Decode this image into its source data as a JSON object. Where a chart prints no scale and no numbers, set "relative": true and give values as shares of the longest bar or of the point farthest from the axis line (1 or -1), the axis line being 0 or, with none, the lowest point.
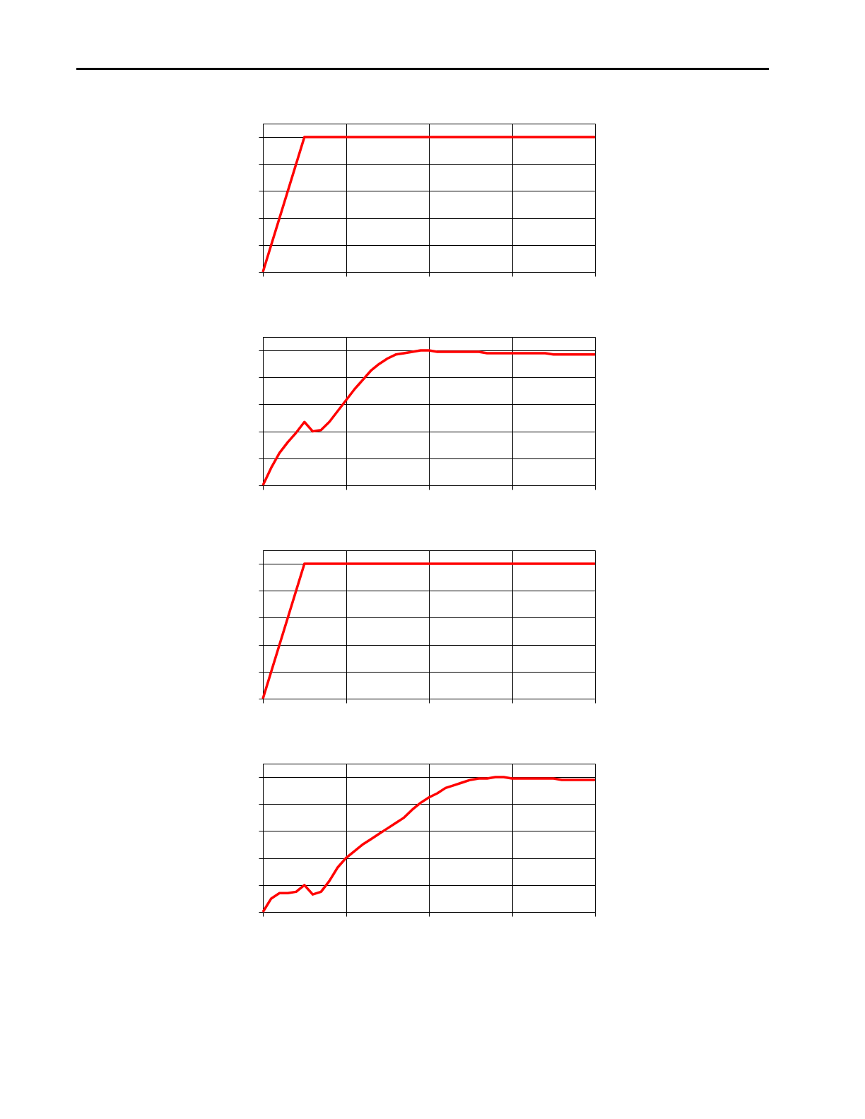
{
  "chart_data": [
    {
      "type": "line",
      "relative": true,
      "grid": true,
      "categories": [
        null,
        null,
        null,
        null,
        null,
        null,
        null,
        null,
        null
      ],
      "series": [
        {
          "color": "#ff0000",
          "values": [
            0,
            1,
            1,
            1,
            1,
            1,
            1,
            1,
            1
          ]
        }
      ]
    },
    {
      "type": "line",
      "relative": true,
      "grid": true,
      "categories": [
        null,
        null,
        null,
        null,
        null,
        null,
        null,
        null,
        null,
        null,
        null,
        null,
        null,
        null,
        null,
        null,
        null,
        null,
        null,
        null,
        null,
        null,
        null,
        null,
        null,
        null,
        null,
        null,
        null,
        null,
        null,
        null,
        null,
        null,
        null,
        null,
        null,
        null,
        null,
        null,
        null
      ],
      "series": [
        {
          "color": "#ff0000",
          "values": [
            0,
            0.13,
            0.24,
            0.32,
            0.39,
            0.47,
            0.4,
            0.41,
            0.47,
            0.55,
            0.63,
            0.71,
            0.78,
            0.85,
            0.9,
            0.94,
            0.97,
            0.98,
            0.99,
            1,
            1,
            0.99,
            0.99,
            0.99,
            0.99,
            0.99,
            0.99,
            0.98,
            0.98,
            0.98,
            0.98,
            0.98,
            0.98,
            0.98,
            0.98,
            0.97,
            0.97,
            0.97,
            0.97,
            0.97,
            0.97
          ]
        }
      ]
    },
    {
      "type": "line",
      "relative": true,
      "grid": true,
      "categories": [
        null,
        null,
        null,
        null,
        null,
        null,
        null,
        null,
        null
      ],
      "series": [
        {
          "color": "#ff0000",
          "values": [
            0,
            1,
            1,
            1,
            1,
            1,
            1,
            1,
            1
          ]
        }
      ]
    },
    {
      "type": "line",
      "relative": true,
      "grid": true,
      "categories": [
        null,
        null,
        null,
        null,
        null,
        null,
        null,
        null,
        null,
        null,
        null,
        null,
        null,
        null,
        null,
        null,
        null,
        null,
        null,
        null,
        null,
        null,
        null,
        null,
        null,
        null,
        null,
        null,
        null,
        null,
        null,
        null,
        null,
        null,
        null,
        null,
        null,
        null,
        null,
        null,
        null
      ],
      "series": [
        {
          "color": "#ff0000",
          "values": [
            0,
            0.1,
            0.14,
            0.14,
            0.15,
            0.2,
            0.13,
            0.15,
            0.23,
            0.33,
            0.4,
            0.45,
            0.5,
            0.54,
            0.58,
            0.62,
            0.66,
            0.7,
            0.76,
            0.81,
            0.85,
            0.88,
            0.92,
            0.94,
            0.96,
            0.98,
            0.99,
            0.99,
            1,
            1,
            0.99,
            0.99,
            0.99,
            0.99,
            0.99,
            0.99,
            0.98,
            0.98,
            0.98,
            0.98,
            0.98
          ]
        }
      ]
    }
  ]
}
